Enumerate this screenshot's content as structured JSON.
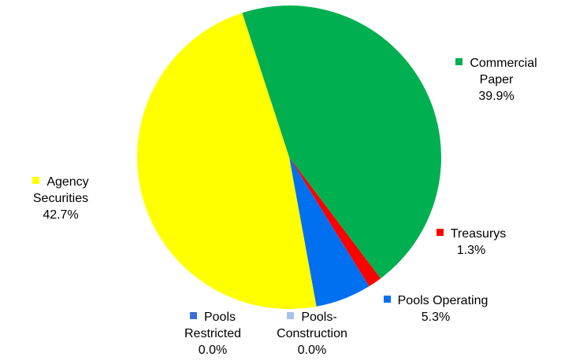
{
  "chart_data": {
    "type": "pie",
    "categories": [
      "Commercial Paper",
      "Treasurys",
      "Pools Operating",
      "Pools-Construction",
      "Pools Restricted",
      "Agency Securities"
    ],
    "values": [
      39.9,
      1.3,
      5.3,
      0.0,
      0.0,
      42.7
    ],
    "value_labels": [
      "39.9%",
      "1.3%",
      "5.3%",
      "0.0%",
      "0.0%",
      "42.7%"
    ],
    "colors": [
      "#00b050",
      "#ff0000",
      "#0070f0",
      "#a6c3ee",
      "#3a6fd8",
      "#ffff00"
    ]
  }
}
